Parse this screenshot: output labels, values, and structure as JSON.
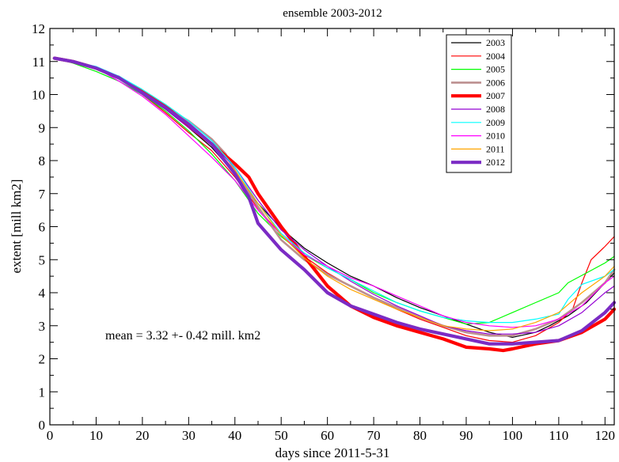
{
  "chart_data": {
    "type": "line",
    "title": "ensemble 2003-2012",
    "xlabel": "days since 2011-5-31",
    "ylabel": "extent [mill km2]",
    "xlim": [
      0,
      122
    ],
    "ylim": [
      0,
      12
    ],
    "x_ticks": [
      0,
      10,
      20,
      30,
      40,
      50,
      60,
      70,
      80,
      90,
      100,
      110,
      120
    ],
    "y_ticks": [
      0,
      1,
      2,
      3,
      4,
      5,
      6,
      7,
      8,
      9,
      10,
      11,
      12
    ],
    "grid": false,
    "legend_position": "top-right",
    "annotation": "mean  = 3.32 +- 0.42 mill. km2",
    "series": [
      {
        "name": "2003",
        "color": "#000000",
        "width": 1.2,
        "points": [
          [
            1,
            11.1
          ],
          [
            5,
            11.0
          ],
          [
            10,
            10.8
          ],
          [
            15,
            10.55
          ],
          [
            20,
            10.1
          ],
          [
            25,
            9.6
          ],
          [
            30,
            9.0
          ],
          [
            35,
            8.4
          ],
          [
            40,
            7.6
          ],
          [
            45,
            6.7
          ],
          [
            50,
            5.95
          ],
          [
            55,
            5.35
          ],
          [
            60,
            4.9
          ],
          [
            65,
            4.5
          ],
          [
            70,
            4.2
          ],
          [
            75,
            3.85
          ],
          [
            80,
            3.55
          ],
          [
            85,
            3.3
          ],
          [
            90,
            3.05
          ],
          [
            95,
            2.8
          ],
          [
            100,
            2.65
          ],
          [
            105,
            2.8
          ],
          [
            108,
            3.0
          ],
          [
            112,
            3.3
          ],
          [
            116,
            3.7
          ],
          [
            120,
            4.3
          ],
          [
            122,
            4.6
          ]
        ]
      },
      {
        "name": "2004",
        "color": "#ff0000",
        "width": 1.2,
        "points": [
          [
            1,
            11.1
          ],
          [
            5,
            11.0
          ],
          [
            10,
            10.8
          ],
          [
            15,
            10.5
          ],
          [
            20,
            10.0
          ],
          [
            25,
            9.45
          ],
          [
            30,
            8.85
          ],
          [
            35,
            8.3
          ],
          [
            40,
            7.5
          ],
          [
            45,
            6.55
          ],
          [
            50,
            5.75
          ],
          [
            55,
            5.1
          ],
          [
            60,
            4.6
          ],
          [
            65,
            4.2
          ],
          [
            70,
            3.85
          ],
          [
            75,
            3.5
          ],
          [
            80,
            3.2
          ],
          [
            85,
            2.95
          ],
          [
            90,
            2.7
          ],
          [
            95,
            2.55
          ],
          [
            100,
            2.5
          ],
          [
            105,
            2.7
          ],
          [
            110,
            3.1
          ],
          [
            113,
            3.5
          ],
          [
            115,
            4.3
          ],
          [
            117,
            5.0
          ],
          [
            120,
            5.4
          ],
          [
            122,
            5.7
          ]
        ]
      },
      {
        "name": "2005",
        "color": "#00ff00",
        "width": 1.2,
        "points": [
          [
            1,
            11.1
          ],
          [
            5,
            10.95
          ],
          [
            10,
            10.7
          ],
          [
            15,
            10.4
          ],
          [
            20,
            10.0
          ],
          [
            25,
            9.5
          ],
          [
            30,
            8.9
          ],
          [
            35,
            8.2
          ],
          [
            40,
            7.4
          ],
          [
            45,
            6.4
          ],
          [
            50,
            5.7
          ],
          [
            55,
            5.15
          ],
          [
            60,
            4.75
          ],
          [
            65,
            4.4
          ],
          [
            70,
            4.0
          ],
          [
            75,
            3.7
          ],
          [
            80,
            3.45
          ],
          [
            85,
            3.25
          ],
          [
            90,
            3.05
          ],
          [
            95,
            3.1
          ],
          [
            100,
            3.4
          ],
          [
            105,
            3.7
          ],
          [
            110,
            4.0
          ],
          [
            112,
            4.3
          ],
          [
            116,
            4.6
          ],
          [
            120,
            4.9
          ],
          [
            122,
            5.1
          ]
        ]
      },
      {
        "name": "2006",
        "color": "#bc8f8f",
        "width": 2.6,
        "points": [
          [
            1,
            11.1
          ],
          [
            5,
            11.0
          ],
          [
            10,
            10.8
          ],
          [
            15,
            10.5
          ],
          [
            20,
            10.05
          ],
          [
            25,
            9.6
          ],
          [
            30,
            9.2
          ],
          [
            35,
            8.65
          ],
          [
            38,
            8.2
          ],
          [
            40,
            7.7
          ],
          [
            45,
            6.6
          ],
          [
            50,
            5.6
          ],
          [
            55,
            5.0
          ],
          [
            60,
            4.55
          ],
          [
            65,
            4.2
          ],
          [
            70,
            3.85
          ],
          [
            75,
            3.55
          ],
          [
            80,
            3.25
          ],
          [
            85,
            3.0
          ],
          [
            90,
            2.8
          ],
          [
            95,
            2.7
          ],
          [
            100,
            2.7
          ],
          [
            105,
            2.9
          ],
          [
            110,
            3.2
          ],
          [
            115,
            3.7
          ],
          [
            120,
            4.3
          ],
          [
            122,
            4.7
          ]
        ]
      },
      {
        "name": "2007",
        "color": "#ff0000",
        "width": 4.2,
        "points": [
          [
            1,
            11.1
          ],
          [
            5,
            11.0
          ],
          [
            10,
            10.8
          ],
          [
            15,
            10.5
          ],
          [
            20,
            10.1
          ],
          [
            25,
            9.65
          ],
          [
            30,
            9.05
          ],
          [
            35,
            8.5
          ],
          [
            40,
            7.9
          ],
          [
            43,
            7.5
          ],
          [
            45,
            7.0
          ],
          [
            50,
            6.0
          ],
          [
            55,
            5.1
          ],
          [
            60,
            4.2
          ],
          [
            65,
            3.6
          ],
          [
            70,
            3.25
          ],
          [
            75,
            3.0
          ],
          [
            80,
            2.8
          ],
          [
            85,
            2.6
          ],
          [
            90,
            2.35
          ],
          [
            95,
            2.3
          ],
          [
            98,
            2.25
          ],
          [
            100,
            2.3
          ],
          [
            105,
            2.45
          ],
          [
            110,
            2.55
          ],
          [
            115,
            2.8
          ],
          [
            120,
            3.2
          ],
          [
            122,
            3.5
          ]
        ]
      },
      {
        "name": "2008",
        "color": "#9400d3",
        "width": 1.2,
        "points": [
          [
            1,
            11.1
          ],
          [
            5,
            11.0
          ],
          [
            10,
            10.8
          ],
          [
            15,
            10.5
          ],
          [
            20,
            10.0
          ],
          [
            25,
            9.55
          ],
          [
            30,
            9.0
          ],
          [
            35,
            8.5
          ],
          [
            40,
            7.8
          ],
          [
            45,
            6.8
          ],
          [
            50,
            5.9
          ],
          [
            55,
            5.3
          ],
          [
            60,
            4.8
          ],
          [
            65,
            4.35
          ],
          [
            70,
            3.95
          ],
          [
            75,
            3.6
          ],
          [
            80,
            3.3
          ],
          [
            85,
            3.0
          ],
          [
            90,
            2.85
          ],
          [
            95,
            2.75
          ],
          [
            100,
            2.75
          ],
          [
            105,
            2.8
          ],
          [
            110,
            3.0
          ],
          [
            115,
            3.4
          ],
          [
            120,
            4.0
          ],
          [
            122,
            4.2
          ]
        ]
      },
      {
        "name": "2009",
        "color": "#00ffff",
        "width": 1.2,
        "points": [
          [
            1,
            11.1
          ],
          [
            5,
            11.0
          ],
          [
            10,
            10.85
          ],
          [
            15,
            10.55
          ],
          [
            20,
            10.15
          ],
          [
            25,
            9.7
          ],
          [
            30,
            9.2
          ],
          [
            35,
            8.6
          ],
          [
            40,
            7.8
          ],
          [
            45,
            6.7
          ],
          [
            50,
            5.8
          ],
          [
            55,
            5.2
          ],
          [
            60,
            4.75
          ],
          [
            65,
            4.4
          ],
          [
            70,
            4.05
          ],
          [
            75,
            3.7
          ],
          [
            80,
            3.45
          ],
          [
            85,
            3.25
          ],
          [
            90,
            3.15
          ],
          [
            95,
            3.1
          ],
          [
            100,
            3.1
          ],
          [
            105,
            3.2
          ],
          [
            110,
            3.35
          ],
          [
            112,
            3.8
          ],
          [
            115,
            4.25
          ],
          [
            120,
            4.5
          ],
          [
            122,
            4.7
          ]
        ]
      },
      {
        "name": "2010",
        "color": "#ff00ff",
        "width": 1.2,
        "points": [
          [
            1,
            11.1
          ],
          [
            5,
            11.0
          ],
          [
            10,
            10.8
          ],
          [
            15,
            10.4
          ],
          [
            20,
            9.95
          ],
          [
            25,
            9.4
          ],
          [
            30,
            8.75
          ],
          [
            35,
            8.1
          ],
          [
            40,
            7.4
          ],
          [
            45,
            6.5
          ],
          [
            50,
            5.75
          ],
          [
            55,
            5.15
          ],
          [
            60,
            4.8
          ],
          [
            65,
            4.45
          ],
          [
            70,
            4.2
          ],
          [
            75,
            3.9
          ],
          [
            80,
            3.6
          ],
          [
            85,
            3.3
          ],
          [
            90,
            3.1
          ],
          [
            95,
            3.0
          ],
          [
            100,
            2.95
          ],
          [
            105,
            3.0
          ],
          [
            110,
            3.2
          ],
          [
            115,
            3.6
          ],
          [
            120,
            4.3
          ],
          [
            122,
            4.5
          ]
        ]
      },
      {
        "name": "2011",
        "color": "#ffa500",
        "width": 1.2,
        "points": [
          [
            1,
            11.1
          ],
          [
            5,
            11.0
          ],
          [
            10,
            10.8
          ],
          [
            15,
            10.5
          ],
          [
            20,
            10.05
          ],
          [
            25,
            9.6
          ],
          [
            30,
            9.1
          ],
          [
            35,
            8.5
          ],
          [
            40,
            7.7
          ],
          [
            45,
            6.7
          ],
          [
            50,
            5.75
          ],
          [
            55,
            5.05
          ],
          [
            60,
            4.5
          ],
          [
            65,
            4.1
          ],
          [
            70,
            3.8
          ],
          [
            75,
            3.5
          ],
          [
            80,
            3.25
          ],
          [
            85,
            3.0
          ],
          [
            90,
            2.9
          ],
          [
            95,
            2.85
          ],
          [
            100,
            2.9
          ],
          [
            105,
            3.1
          ],
          [
            110,
            3.4
          ],
          [
            115,
            4.0
          ],
          [
            120,
            4.5
          ],
          [
            122,
            4.8
          ]
        ]
      },
      {
        "name": "2012",
        "color": "#7b2bc4",
        "width": 4.2,
        "points": [
          [
            1,
            11.1
          ],
          [
            5,
            11.0
          ],
          [
            10,
            10.8
          ],
          [
            15,
            10.5
          ],
          [
            20,
            10.05
          ],
          [
            25,
            9.6
          ],
          [
            30,
            9.1
          ],
          [
            35,
            8.5
          ],
          [
            40,
            7.6
          ],
          [
            43,
            6.9
          ],
          [
            45,
            6.1
          ],
          [
            50,
            5.3
          ],
          [
            55,
            4.7
          ],
          [
            60,
            4.0
          ],
          [
            65,
            3.6
          ],
          [
            70,
            3.35
          ],
          [
            75,
            3.1
          ],
          [
            80,
            2.9
          ],
          [
            85,
            2.75
          ],
          [
            90,
            2.6
          ],
          [
            95,
            2.45
          ],
          [
            100,
            2.45
          ],
          [
            105,
            2.5
          ],
          [
            110,
            2.55
          ],
          [
            115,
            2.85
          ],
          [
            120,
            3.4
          ],
          [
            122,
            3.7
          ]
        ]
      }
    ]
  }
}
